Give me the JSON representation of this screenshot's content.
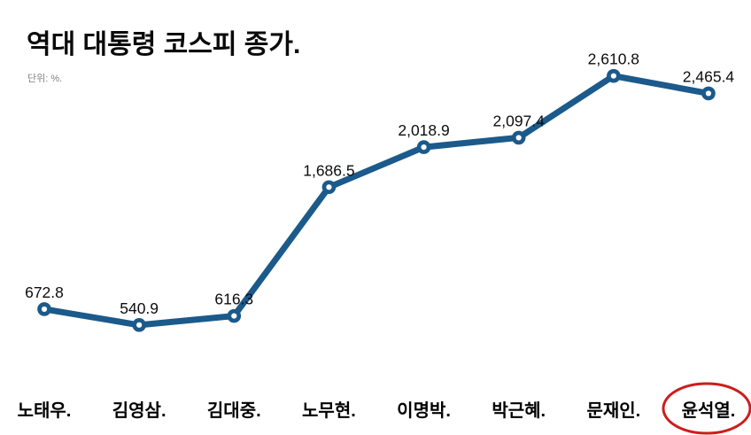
{
  "header": {
    "title": "역대 대통령 코스피 종가.",
    "unit_label": "단위: %."
  },
  "chart_data": {
    "type": "line",
    "title": "역대 대통령 코스피 종가.",
    "subtitle": "단위: %.",
    "categories": [
      "노태우.",
      "김영삼.",
      "김대중.",
      "노무현.",
      "이명박.",
      "박근혜.",
      "문재인.",
      "윤석열."
    ],
    "values": [
      672.8,
      540.9,
      616.3,
      1686.5,
      2018.9,
      2097.4,
      2610.8,
      2465.4
    ],
    "value_labels": [
      "672.8",
      "540.9",
      "616.3",
      "1,686.5",
      "2,018.9",
      "2,097.4",
      "2,610.8",
      "2,465.4"
    ],
    "highlighted_category_index": 7,
    "highlight_shape": "red-ellipse",
    "xlabel": "",
    "ylabel": "",
    "ylim": [
      400,
      2800
    ],
    "grid": false,
    "legend": false,
    "colors": {
      "line": "#1b5a8a",
      "marker_fill": "#ffffff",
      "value_label": "#0d0d0d",
      "category_label": "#000000",
      "highlight": "#cc1e1e",
      "background": "#ffffff"
    }
  }
}
